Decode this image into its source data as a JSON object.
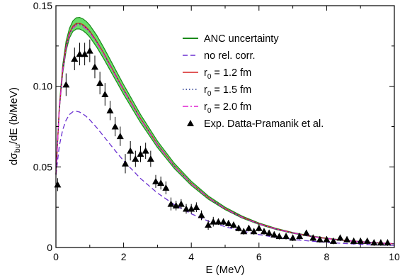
{
  "chart_data": {
    "type": "line",
    "xlabel": "E (MeV)",
    "ylabel": {
      "prefix": "dσ",
      "sub": "bu",
      "suffix": "/dE (b/MeV)"
    },
    "xlim": [
      0,
      10
    ],
    "ylim": [
      0,
      0.15
    ],
    "x_ticks": [
      0,
      2,
      4,
      6,
      8,
      10
    ],
    "x_tick_labels": [
      "0",
      "2",
      "4",
      "6",
      "8",
      "10"
    ],
    "y_ticks": [
      0,
      0.05,
      0.1,
      0.15
    ],
    "y_tick_labels": [
      "0",
      "0.05",
      "0.10",
      "0.15"
    ],
    "grid": false,
    "legend_position": "top-right",
    "series": [
      {
        "name": "ANC uncertainty",
        "kind": "band",
        "color": "#1a8a1a",
        "fill": "#4fd84f",
        "x": [
          0,
          0.1,
          0.2,
          0.3,
          0.4,
          0.5,
          0.6,
          0.7,
          0.8,
          0.9,
          1.0,
          1.2,
          1.4,
          1.6,
          1.8,
          2.0,
          2.5,
          3.0,
          3.5,
          4.0,
          4.5,
          5.0,
          5.5,
          6.0,
          6.5,
          7.0,
          7.5,
          8.0,
          8.5,
          9.0,
          9.5,
          10.0
        ],
        "lower": [
          0.045,
          0.085,
          0.108,
          0.122,
          0.13,
          0.134,
          0.1355,
          0.1355,
          0.1345,
          0.1328,
          0.1305,
          0.1245,
          0.1175,
          0.11,
          0.1025,
          0.095,
          0.0775,
          0.062,
          0.049,
          0.0385,
          0.03,
          0.0235,
          0.0183,
          0.0143,
          0.0112,
          0.0088,
          0.0069,
          0.0055,
          0.0044,
          0.0035,
          0.0028,
          0.0022
        ],
        "upper": [
          0.046,
          0.088,
          0.113,
          0.128,
          0.136,
          0.1405,
          0.1425,
          0.1427,
          0.1418,
          0.1402,
          0.1379,
          0.1318,
          0.1245,
          0.1167,
          0.1088,
          0.101,
          0.0825,
          0.066,
          0.0522,
          0.0411,
          0.032,
          0.025,
          0.0195,
          0.0152,
          0.0119,
          0.0093,
          0.0073,
          0.0058,
          0.0046,
          0.0037,
          0.003,
          0.0023
        ]
      },
      {
        "name": "no rel. corr.",
        "kind": "line",
        "color": "#6a2fd1",
        "dash": "7,4",
        "x": [
          0,
          0.1,
          0.2,
          0.3,
          0.4,
          0.5,
          0.6,
          0.7,
          0.8,
          0.9,
          1.0,
          1.2,
          1.4,
          1.6,
          1.8,
          2.0,
          2.5,
          3.0,
          3.5,
          4.0,
          4.5,
          5.0,
          5.5,
          6.0,
          6.5,
          7.0,
          7.5,
          8.0,
          8.5,
          9.0,
          9.5,
          10.0
        ],
        "y": [
          0.045,
          0.063,
          0.073,
          0.079,
          0.0825,
          0.0842,
          0.0845,
          0.084,
          0.0828,
          0.0812,
          0.0792,
          0.0745,
          0.0693,
          0.064,
          0.0588,
          0.0538,
          0.0428,
          0.0338,
          0.0266,
          0.0209,
          0.0164,
          0.0129,
          0.0102,
          0.008,
          0.0063,
          0.005,
          0.004,
          0.0032,
          0.0025,
          0.002,
          0.0016,
          0.0013
        ]
      },
      {
        "name_parts": [
          "r",
          "0",
          " = 1.2 fm"
        ],
        "kind": "line",
        "color": "#d62020",
        "dash": "",
        "x": [
          0,
          0.1,
          0.2,
          0.3,
          0.4,
          0.5,
          0.6,
          0.7,
          0.8,
          0.9,
          1.0,
          1.2,
          1.4,
          1.6,
          1.8,
          2.0,
          2.5,
          3.0,
          3.5,
          4.0,
          4.5,
          5.0,
          5.5,
          6.0,
          6.5,
          7.0,
          7.5,
          8.0,
          8.5,
          9.0,
          9.5,
          10.0
        ],
        "y": [
          0.0455,
          0.0865,
          0.1105,
          0.125,
          0.133,
          0.1372,
          0.139,
          0.1391,
          0.1382,
          0.1365,
          0.1342,
          0.1281,
          0.121,
          0.1133,
          0.1056,
          0.098,
          0.08,
          0.064,
          0.0506,
          0.0398,
          0.031,
          0.0242,
          0.0189,
          0.0148,
          0.0116,
          0.0091,
          0.0071,
          0.0056,
          0.0045,
          0.0036,
          0.0029,
          0.0023
        ]
      },
      {
        "name_parts": [
          "r",
          "0",
          " = 1.5 fm"
        ],
        "kind": "line",
        "color": "#1f2f8a",
        "dash": "1.5,3",
        "x": [
          0,
          0.1,
          0.2,
          0.3,
          0.4,
          0.5,
          0.6,
          0.7,
          0.8,
          0.9,
          1.0,
          1.2,
          1.4,
          1.6,
          1.8,
          2.0,
          2.5,
          3.0,
          3.5,
          4.0,
          4.5,
          5.0,
          5.5,
          6.0,
          6.5,
          7.0,
          7.5,
          8.0,
          8.5,
          9.0,
          9.5,
          10.0
        ],
        "y": [
          0.0455,
          0.0862,
          0.11,
          0.1245,
          0.1325,
          0.1367,
          0.1385,
          0.1386,
          0.1377,
          0.136,
          0.1338,
          0.1277,
          0.1206,
          0.113,
          0.1053,
          0.0977,
          0.0798,
          0.0638,
          0.0504,
          0.0397,
          0.0309,
          0.0241,
          0.0188,
          0.0147,
          0.0115,
          0.009,
          0.0071,
          0.0056,
          0.0045,
          0.0036,
          0.0029,
          0.0023
        ]
      },
      {
        "name_parts": [
          "r",
          "0",
          " = 2.0 fm"
        ],
        "kind": "line",
        "color": "#e020d0",
        "dash": "8,3,2,3",
        "x": [
          0,
          0.1,
          0.2,
          0.3,
          0.4,
          0.5,
          0.6,
          0.7,
          0.8,
          0.9,
          1.0,
          1.2,
          1.4,
          1.6,
          1.8,
          2.0,
          2.5,
          3.0,
          3.5,
          4.0,
          4.5,
          5.0,
          5.5,
          6.0,
          6.5,
          7.0,
          7.5,
          8.0,
          8.5,
          9.0,
          9.5,
          10.0
        ],
        "y": [
          0.0455,
          0.0858,
          0.1095,
          0.1238,
          0.1318,
          0.136,
          0.1378,
          0.138,
          0.1371,
          0.1355,
          0.1333,
          0.1273,
          0.1203,
          0.1127,
          0.105,
          0.0975,
          0.0796,
          0.0636,
          0.0503,
          0.0396,
          0.0308,
          0.024,
          0.0187,
          0.0146,
          0.0114,
          0.009,
          0.007,
          0.0056,
          0.0044,
          0.0035,
          0.0028,
          0.0022
        ]
      },
      {
        "name": "Exp. Datta-Pramanik et al.",
        "kind": "scatter",
        "color": "#000000",
        "marker": "triangle",
        "x": [
          0.05,
          0.3,
          0.55,
          0.7,
          0.85,
          1.0,
          1.15,
          1.3,
          1.45,
          1.6,
          1.75,
          1.9,
          2.05,
          2.2,
          2.35,
          2.5,
          2.65,
          2.8,
          2.95,
          3.1,
          3.25,
          3.4,
          3.55,
          3.7,
          3.85,
          4.0,
          4.15,
          4.3,
          4.5,
          4.65,
          4.8,
          4.95,
          5.1,
          5.25,
          5.4,
          5.55,
          5.7,
          5.85,
          6.0,
          6.15,
          6.3,
          6.45,
          6.6,
          6.8,
          7.0,
          7.2,
          7.4,
          7.6,
          7.8,
          8.0,
          8.2,
          8.4,
          8.6,
          8.8,
          9.0,
          9.2,
          9.4,
          9.6,
          9.8
        ],
        "y": [
          0.039,
          0.101,
          0.117,
          0.12,
          0.12,
          0.122,
          0.112,
          0.102,
          0.095,
          0.085,
          0.075,
          0.069,
          0.052,
          0.06,
          0.055,
          0.058,
          0.06,
          0.055,
          0.041,
          0.04,
          0.037,
          0.027,
          0.026,
          0.027,
          0.024,
          0.024,
          0.025,
          0.02,
          0.014,
          0.016,
          0.016,
          0.016,
          0.015,
          0.014,
          0.012,
          0.01,
          0.012,
          0.01,
          0.012,
          0.01,
          0.009,
          0.008,
          0.007,
          0.007,
          0.006,
          0.007,
          0.009,
          0.006,
          0.005,
          0.005,
          0.004,
          0.006,
          0.005,
          0.004,
          0.004,
          0.004,
          0.003,
          0.003,
          0.003
        ],
        "err": [
          0.004,
          0.007,
          0.007,
          0.007,
          0.007,
          0.007,
          0.007,
          0.007,
          0.007,
          0.006,
          0.006,
          0.006,
          0.006,
          0.006,
          0.005,
          0.005,
          0.005,
          0.005,
          0.004,
          0.004,
          0.004,
          0.004,
          0.003,
          0.003,
          0.003,
          0.003,
          0.003,
          0.003,
          0.003,
          0.003,
          0.002,
          0.002,
          0.002,
          0.002,
          0.002,
          0.002,
          0.002,
          0.002,
          0.002,
          0.002,
          0.002,
          0.002,
          0.002,
          0.002,
          0.002,
          0.002,
          0.002,
          0.002,
          0.002,
          0.002,
          0.002,
          0.002,
          0.002,
          0.002,
          0.002,
          0.002,
          0.002,
          0.002,
          0.002
        ]
      }
    ]
  }
}
